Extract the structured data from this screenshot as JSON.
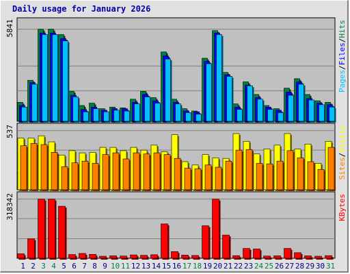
{
  "title": "Daily usage for January 2026",
  "colors": {
    "hits": "#008040",
    "files": "#0000ff",
    "pages": "#00c0ff",
    "visits": "#ffff00",
    "sites": "#ff8000",
    "kbytes": "#ff0000",
    "plot_bg": "#c0c0c0",
    "weekend_label": "#008040",
    "weekday_label": "#000080"
  },
  "chart_data": [
    {
      "type": "bar",
      "panel": "hits-files-pages",
      "categories": [
        "1",
        "2",
        "3",
        "4",
        "5",
        "6",
        "7",
        "8",
        "9",
        "10",
        "11",
        "12",
        "13",
        "14",
        "15",
        "16",
        "17",
        "18",
        "19",
        "20",
        "21",
        "22",
        "23",
        "24",
        "25",
        "26",
        "27",
        "28",
        "29",
        "30",
        "31"
      ],
      "weekend_days": [
        "3",
        "4",
        "10",
        "11",
        "17",
        "18",
        "24",
        "25",
        "31"
      ],
      "ymax_label": "5841",
      "ylim": [
        0,
        5841
      ],
      "legend": [
        "Pages",
        "Files",
        "Hits"
      ],
      "legend_position": "right",
      "series": [
        {
          "name": "Hits",
          "values": [
            1200,
            2600,
            5841,
            5841,
            5500,
            1900,
            1000,
            1150,
            800,
            900,
            850,
            1400,
            1900,
            1500,
            4400,
            1400,
            800,
            650,
            4000,
            5750,
            3100,
            1100,
            2500,
            1700,
            1000,
            800,
            2100,
            2700,
            1700,
            1300,
            1200
          ]
        },
        {
          "name": "Files",
          "values": [
            1000,
            2450,
            5600,
            5600,
            5250,
            1650,
            750,
            900,
            700,
            800,
            800,
            1200,
            1700,
            1300,
            4150,
            1200,
            650,
            600,
            3800,
            5600,
            2950,
            900,
            2300,
            1500,
            900,
            700,
            1850,
            2500,
            1450,
            1150,
            1050
          ]
        },
        {
          "name": "Pages",
          "values": [
            900,
            2350,
            5500,
            5500,
            5100,
            1550,
            600,
            800,
            600,
            700,
            650,
            1100,
            1550,
            1150,
            3950,
            1100,
            550,
            450,
            3650,
            5500,
            2850,
            750,
            2250,
            1400,
            750,
            550,
            1650,
            2350,
            1350,
            1050,
            900
          ]
        }
      ]
    },
    {
      "type": "bar",
      "panel": "visits-sites",
      "categories": [
        "1",
        "2",
        "3",
        "4",
        "5",
        "6",
        "7",
        "8",
        "9",
        "10",
        "11",
        "12",
        "13",
        "14",
        "15",
        "16",
        "17",
        "18",
        "19",
        "20",
        "21",
        "22",
        "23",
        "24",
        "25",
        "26",
        "27",
        "28",
        "29",
        "30",
        "31"
      ],
      "ymax_label": "537",
      "ylim": [
        0,
        537
      ],
      "legend": [
        "Sites",
        "Visits"
      ],
      "legend_position": "right",
      "series": [
        {
          "name": "Visits",
          "values": [
            470,
            470,
            490,
            435,
            315,
            355,
            335,
            340,
            385,
            385,
            355,
            385,
            360,
            405,
            345,
            500,
            255,
            225,
            320,
            290,
            285,
            510,
            440,
            325,
            370,
            405,
            510,
            370,
            415,
            240,
            440
          ]
        },
        {
          "name": "Sites",
          "values": [
            400,
            420,
            410,
            340,
            210,
            245,
            260,
            240,
            320,
            335,
            280,
            335,
            325,
            335,
            320,
            285,
            195,
            190,
            225,
            205,
            260,
            360,
            365,
            240,
            235,
            260,
            355,
            290,
            255,
            185,
            385
          ]
        }
      ]
    },
    {
      "type": "bar",
      "panel": "kbytes",
      "categories": [
        "1",
        "2",
        "3",
        "4",
        "5",
        "6",
        "7",
        "8",
        "9",
        "10",
        "11",
        "12",
        "13",
        "14",
        "15",
        "16",
        "17",
        "18",
        "19",
        "20",
        "21",
        "22",
        "23",
        "24",
        "25",
        "26",
        "27",
        "28",
        "29",
        "30",
        "31"
      ],
      "ymax_label": "318342",
      "ylim": [
        0,
        318342
      ],
      "legend": [
        "KBytes"
      ],
      "legend_position": "right",
      "series": [
        {
          "name": "KBytes",
          "values": [
            24000,
            105000,
            318342,
            318342,
            280000,
            20000,
            26000,
            21000,
            11000,
            13000,
            12000,
            18000,
            16000,
            19000,
            185000,
            36000,
            17000,
            15000,
            175000,
            318342,
            125000,
            14000,
            53000,
            50000,
            12000,
            13000,
            53000,
            30000,
            13000,
            11000,
            14000
          ]
        }
      ]
    }
  ]
}
